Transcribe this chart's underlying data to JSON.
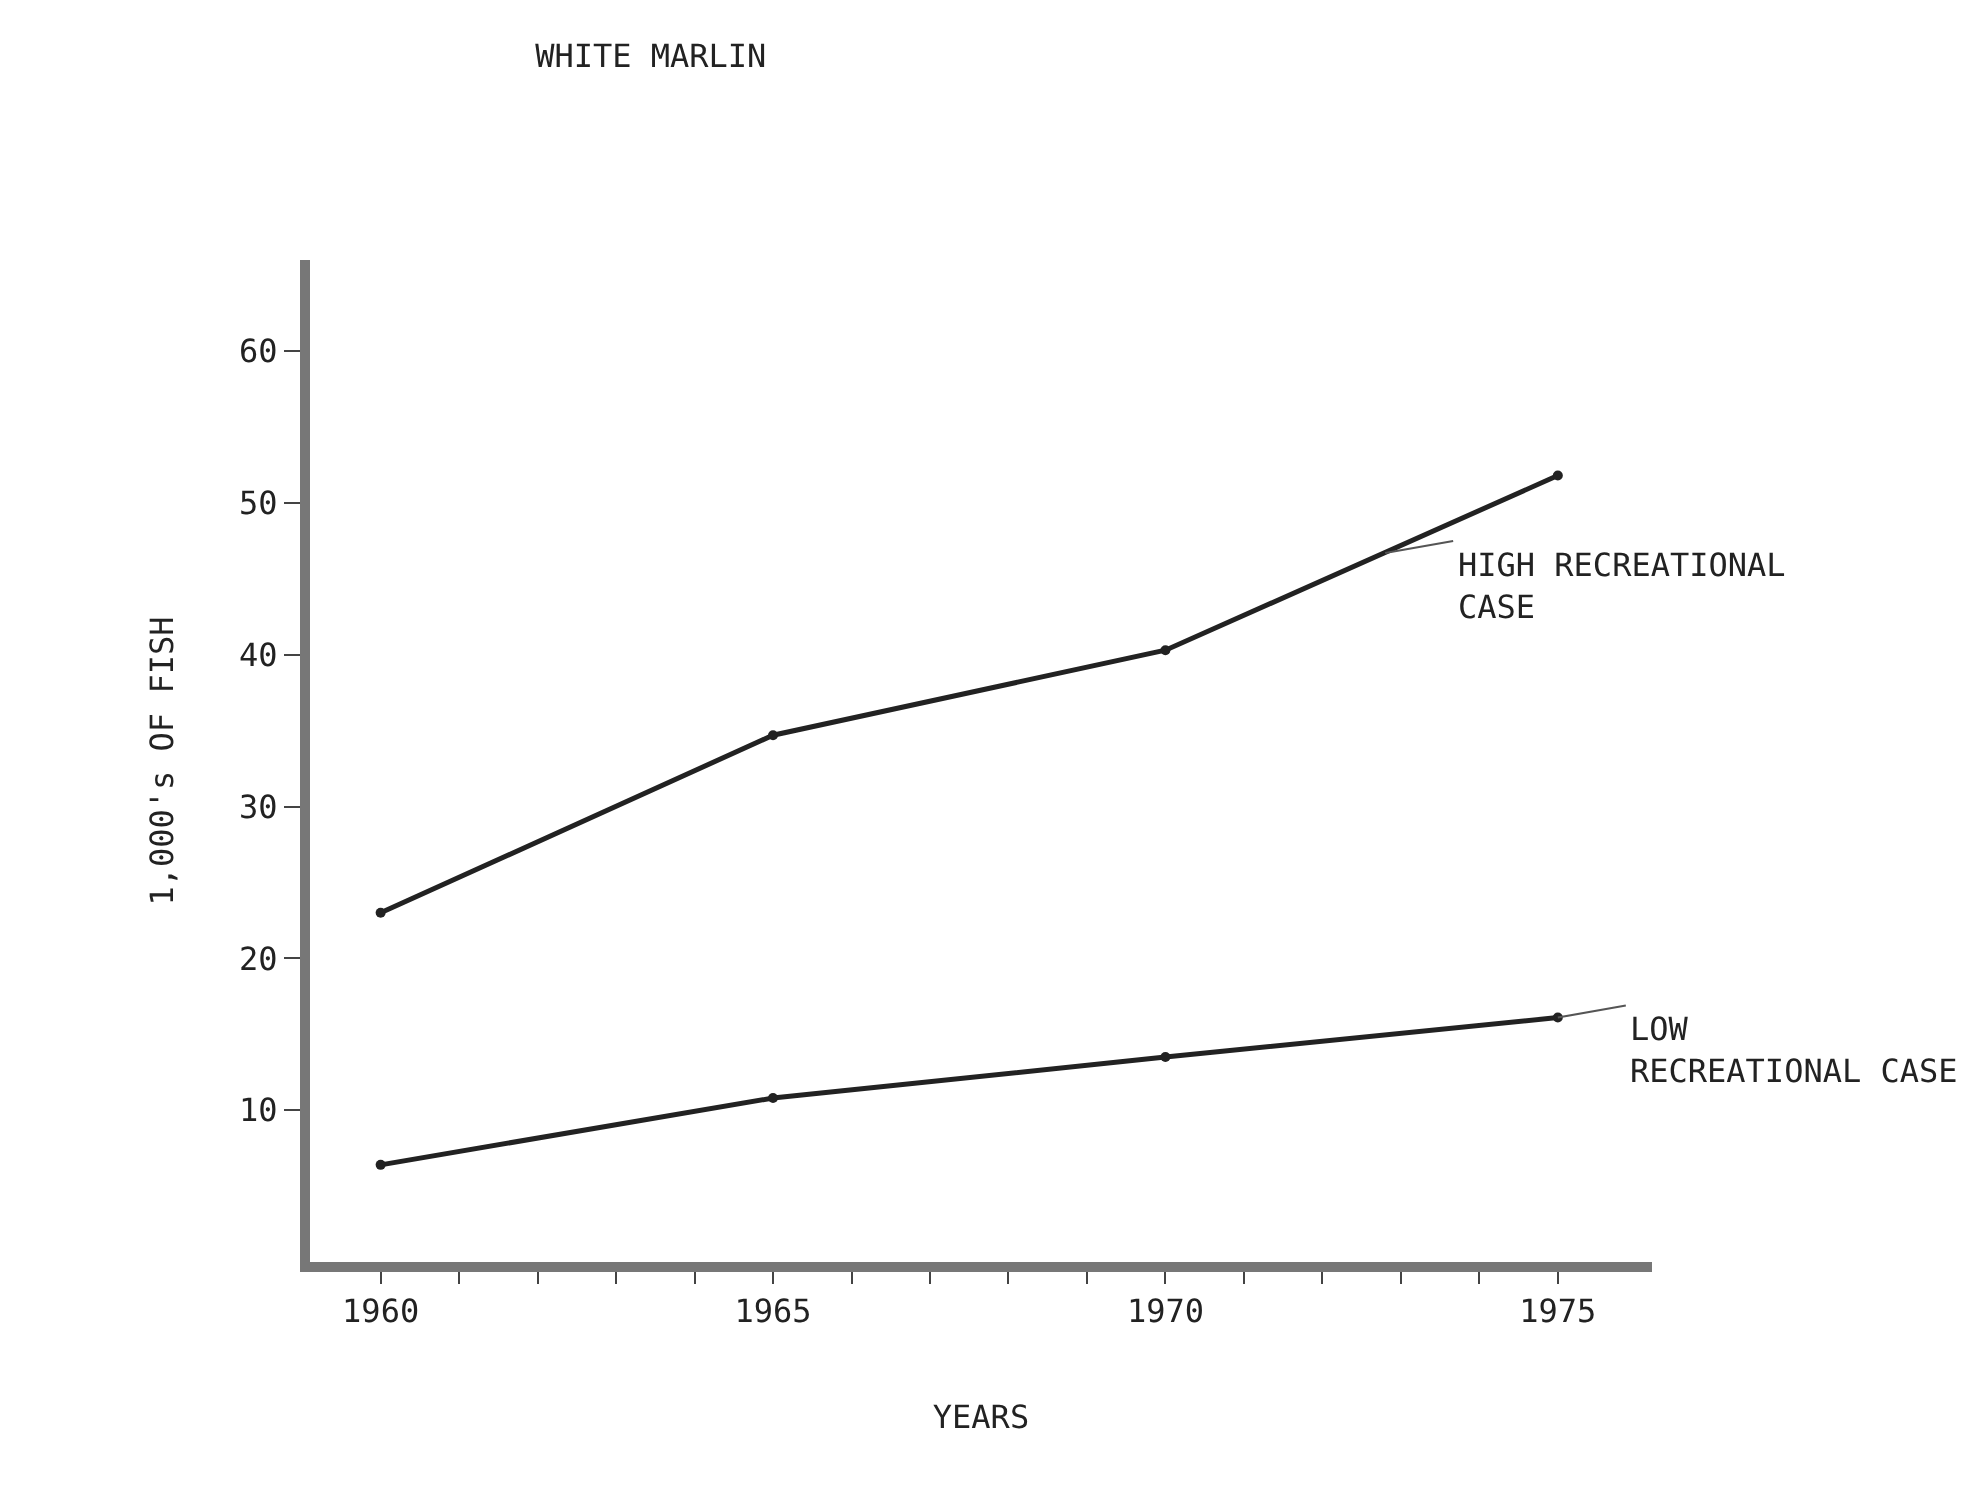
{
  "chart_data": {
    "type": "line",
    "title": "WHITE MARLIN",
    "xlabel": "YEARS",
    "ylabel": "1,000's OF FISH",
    "x": [
      1960,
      1965,
      1970,
      1975
    ],
    "series": [
      {
        "color": "#222222",
        "values": [
          23.0,
          34.7,
          40.3,
          51.8
        ]
      },
      {
        "color": "#222222",
        "values": [
          6.4,
          10.8,
          13.5,
          16.1
        ]
      }
    ],
    "xlim": [
      1959.1,
      1976.2
    ],
    "xticks": [
      1960,
      {
        "value": 1961,
        "label": null
      },
      {
        "value": 1962,
        "label": null
      },
      {
        "value": 1963,
        "label": null
      },
      {
        "value": 1964,
        "label": null
      },
      1965,
      {
        "value": 1966,
        "label": null
      },
      {
        "value": 1967,
        "label": null
      },
      {
        "value": 1968,
        "label": null
      },
      {
        "value": 1969,
        "label": null
      },
      1970,
      {
        "value": 1971,
        "label": null
      },
      {
        "value": 1972,
        "label": null
      },
      {
        "value": 1973,
        "label": null
      },
      {
        "value": 1974,
        "label": null
      },
      1975
    ],
    "ylim": [
      0,
      66
    ],
    "yticks": [
      10,
      20,
      30,
      40,
      50,
      60
    ],
    "grid": false,
    "marker": "circle",
    "line_style": "solid",
    "annotations": [
      {
        "text": "HIGH RECREATIONAL\nCASE",
        "x": 1972.8,
        "y": 46.7
      },
      {
        "text": "LOW\nRECREATIONAL CASE",
        "x": 1975,
        "y": 16.1
      }
    ]
  }
}
